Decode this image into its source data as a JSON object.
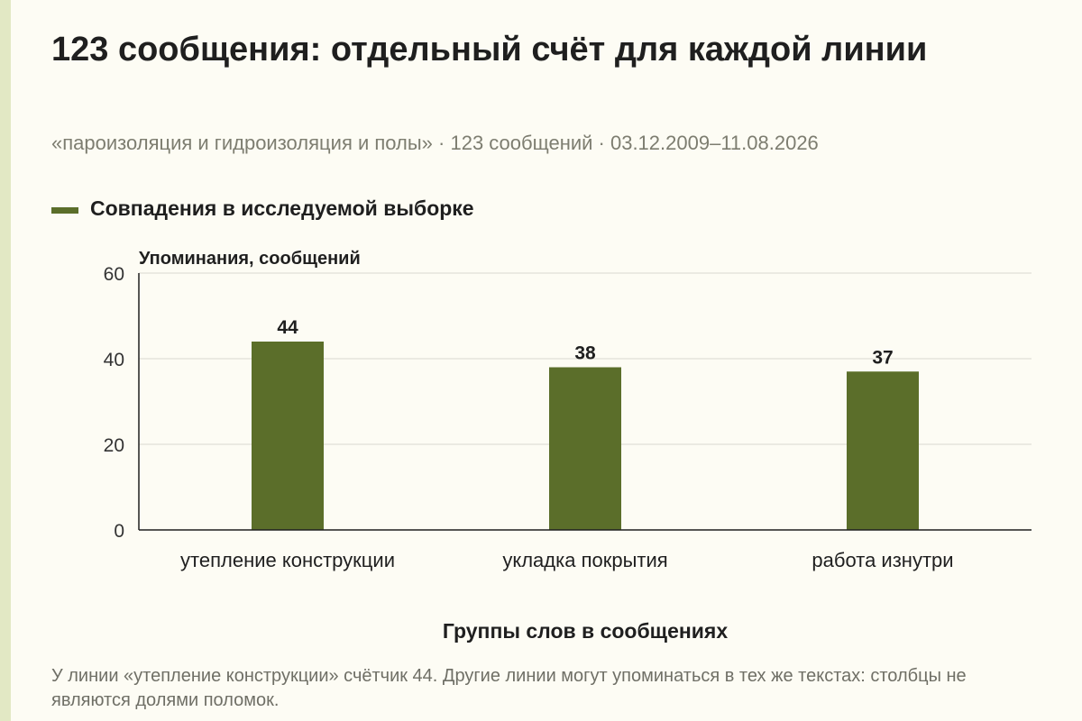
{
  "chart_data": {
    "type": "bar",
    "title": "123 сообщения: отдельный счёт для каждой линии",
    "subtitle": "«пароизоляция и гидроизоляция и полы» · 123 сообщений · 03.12.2009–11.08.2026",
    "categories": [
      "утепление конструкции",
      "укладка покрытия",
      "работа изнутри"
    ],
    "series": [
      {
        "name": "Совпадения в исследуемой выборке",
        "values": [
          44,
          38,
          37
        ]
      }
    ],
    "xlabel": "Группы слов в сообщениях",
    "ylabel": "Упоминания, сообщений",
    "ylim": [
      0,
      60
    ],
    "yticks": [
      0,
      20,
      40,
      60
    ],
    "grid": true,
    "legend": "top-left",
    "bar_color": "#5b6e2a",
    "note": "У линии «утепление конструкции» счётчик 44. Другие линии могут упоминаться в тех же текстах: столбцы не являются долями поломок."
  }
}
